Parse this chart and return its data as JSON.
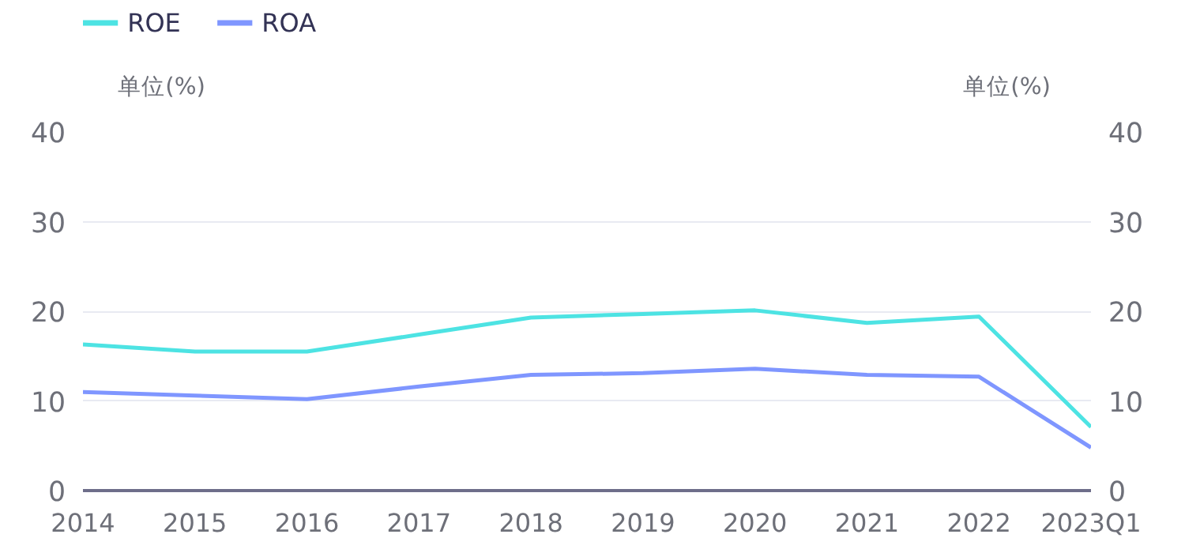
{
  "chart_data": {
    "type": "line",
    "categories": [
      "2014",
      "2015",
      "2016",
      "2017",
      "2018",
      "2019",
      "2020",
      "2021",
      "2022",
      "2023Q1"
    ],
    "series": [
      {
        "name": "ROE",
        "color": "#4de3e3",
        "values": [
          16.3,
          15.5,
          15.5,
          17.4,
          19.3,
          19.7,
          20.1,
          18.7,
          19.4,
          7.1
        ]
      },
      {
        "name": "ROA",
        "color": "#7f96ff",
        "values": [
          11.0,
          10.6,
          10.2,
          11.6,
          12.9,
          13.1,
          13.6,
          12.9,
          12.7,
          4.8
        ]
      }
    ],
    "ylabel": "单位(%)",
    "y2label": "单位(%)",
    "ylim": [
      0,
      40
    ],
    "yticks": [
      0,
      10,
      20,
      30,
      40
    ],
    "y2lim": [
      0,
      40
    ],
    "y2ticks": [
      0,
      10,
      20,
      30,
      40
    ],
    "grid": "y",
    "legend": "top left",
    "marker": "none",
    "line_style": "solid"
  }
}
